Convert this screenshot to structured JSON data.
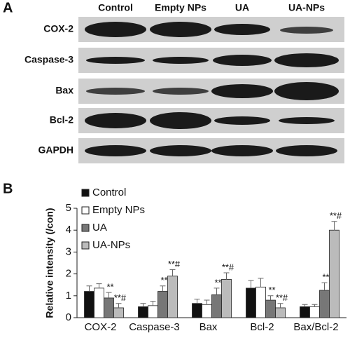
{
  "panel_a": {
    "label": "A",
    "columns": [
      "Control",
      "Empty NPs",
      "UA",
      "UA-NPs"
    ],
    "rows": [
      "COX-2",
      "Caspase-3",
      "Bax",
      "Bcl-2",
      "GAPDH"
    ]
  },
  "chart_data": {
    "type": "bar",
    "label": "B",
    "y_label": "Relative intensity (/con)",
    "categories": [
      "COX-2",
      "Caspase-3",
      "Bax",
      "Bcl-2",
      "Bax/Bcl-2"
    ],
    "series": [
      {
        "name": "Control",
        "color": "#111111",
        "values": [
          1.2,
          0.5,
          0.65,
          1.35,
          0.5
        ],
        "errors": [
          0.25,
          0.15,
          0.2,
          0.35,
          0.1
        ],
        "annotations": [
          null,
          null,
          null,
          null,
          null
        ]
      },
      {
        "name": "Empty NPs",
        "color": "#ffffff",
        "values": [
          1.35,
          0.55,
          0.6,
          1.4,
          0.5
        ],
        "errors": [
          0.2,
          0.2,
          0.2,
          0.4,
          0.1
        ],
        "annotations": [
          null,
          null,
          null,
          null,
          null
        ]
      },
      {
        "name": "UA",
        "color": "#777777",
        "values": [
          0.9,
          1.2,
          1.05,
          0.8,
          1.25
        ],
        "errors": [
          0.25,
          0.25,
          0.3,
          0.2,
          0.35
        ],
        "annotations": [
          "**",
          "**",
          "**",
          "**",
          "**"
        ]
      },
      {
        "name": "UA-NPs",
        "color": "#bbbbbb",
        "values": [
          0.45,
          1.9,
          1.75,
          0.45,
          4.0
        ],
        "errors": [
          0.2,
          0.3,
          0.3,
          0.2,
          0.4
        ],
        "annotations": [
          "**#",
          "**#",
          "**#",
          "**#",
          "**#"
        ]
      }
    ],
    "ylim": [
      0,
      5
    ],
    "yticks": [
      0,
      1,
      2,
      3,
      4,
      5
    ]
  }
}
